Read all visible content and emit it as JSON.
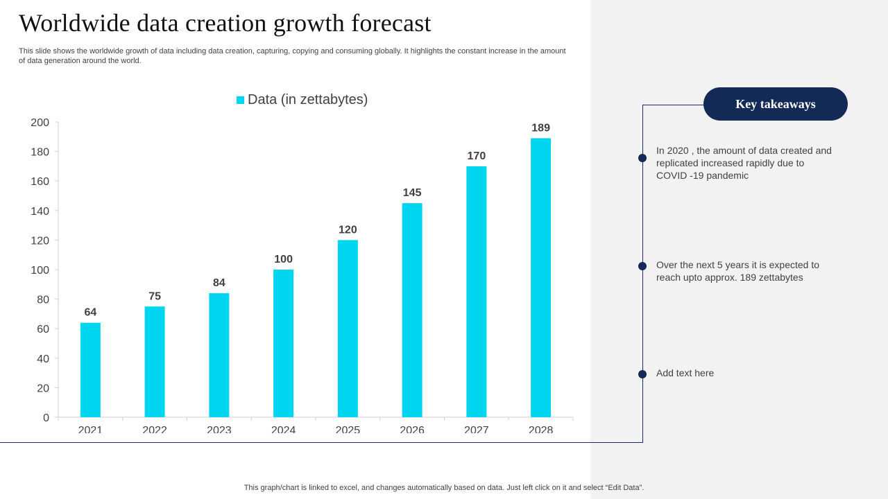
{
  "title": "Worldwide data creation growth forecast",
  "subtitle": "This slide shows the  worldwide growth of data including data creation, capturing, copying and consuming globally. It highlights the constant increase in the amount of data generation around the world.",
  "takeaways": {
    "heading": "Key takeaways",
    "points": [
      "In 2020 , the amount of data created and replicated increased rapidly due to COVID -19 pandemic",
      "Over the next 5 years it is expected to reach upto approx.  189 zettabytes",
      "Add text here"
    ]
  },
  "footer": "This graph/chart is linked to excel,  and changes automatically based on data. Just left click on it and select “Edit Data”.",
  "colors": {
    "bar": "#00d6ef",
    "navy": "#132a57",
    "panel": "#f2f2f2"
  },
  "chart_data": {
    "type": "bar",
    "title": "",
    "xlabel": "",
    "ylabel": "",
    "categories": [
      "2021",
      "2022",
      "2023",
      "2024",
      "2025",
      "2026",
      "2027",
      "2028"
    ],
    "series": [
      {
        "name": "Data (in zettabytes)",
        "values": [
          64,
          75,
          84,
          100,
          120,
          145,
          170,
          189
        ]
      }
    ],
    "ylim": [
      0,
      200
    ],
    "yticks": [
      0,
      20,
      40,
      60,
      80,
      100,
      120,
      140,
      160,
      180,
      200
    ],
    "legend": "top",
    "grid": false,
    "data_labels": true
  }
}
